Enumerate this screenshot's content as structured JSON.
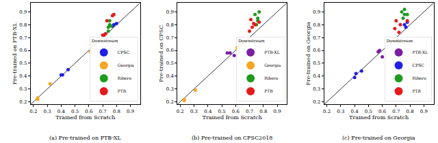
{
  "chart_data": [
    {
      "type": "scatter",
      "title": "(a) Pre-trained on PTB-XL",
      "x_label": "Trained from Scratch",
      "y_label": "Pre-trained on PTB-XL",
      "xlim": [
        0.18,
        0.97
      ],
      "ylim": [
        0.18,
        0.97
      ],
      "xticks": [
        0.2,
        0.3,
        0.4,
        0.5,
        0.6,
        0.7,
        0.8,
        0.9
      ],
      "yticks": [
        0.2,
        0.3,
        0.4,
        0.5,
        0.6,
        0.7,
        0.8,
        0.9
      ],
      "grid": false,
      "legend": "lower right",
      "legend_title": "Downstream",
      "series": [
        {
          "name": "CPSC",
          "color": "#1f1fe6",
          "marker": "circle",
          "x": [
            0.41,
            0.4,
            0.45,
            0.78,
            0.8,
            0.77
          ],
          "values": [
            0.41,
            0.41,
            0.45,
            0.8,
            0.81,
            0.79
          ]
        },
        {
          "name": "Georgia",
          "color": "#f5a623",
          "marker": "circle",
          "x": [
            0.23,
            0.32,
            0.23,
            0.62,
            0.61,
            0.62
          ],
          "values": [
            0.22,
            0.34,
            0.23,
            0.63,
            0.59,
            0.64
          ]
        },
        {
          "name": "Ribero",
          "color": "#1e9a1e",
          "marker": "circle",
          "x": [
            0.74,
            0.75,
            0.74,
            0.76,
            0.75
          ],
          "values": [
            0.78,
            0.83,
            0.75,
            0.79,
            0.8
          ]
        },
        {
          "name": "PTB",
          "color": "#e8191b",
          "marker": "circle",
          "x": [
            0.7,
            0.73,
            0.77,
            0.78,
            0.72,
            0.71
          ],
          "values": [
            0.72,
            0.83,
            0.87,
            0.88,
            0.73,
            0.72
          ]
        }
      ]
    },
    {
      "type": "scatter",
      "title": "(b) Pre-trained on CPSC2018",
      "x_label": "Trained from Scratch",
      "y_label": "Pre-trained on CPSC",
      "xlim": [
        0.18,
        0.97
      ],
      "ylim": [
        0.18,
        0.97
      ],
      "xticks": [
        0.2,
        0.3,
        0.4,
        0.5,
        0.6,
        0.7,
        0.8,
        0.9
      ],
      "yticks": [
        0.2,
        0.3,
        0.4,
        0.5,
        0.6,
        0.7,
        0.8,
        0.9
      ],
      "grid": false,
      "legend": "lower right",
      "legend_title": "Downstream",
      "series": [
        {
          "name": "PTB-XL",
          "color": "#7b1fa2",
          "marker": "circle",
          "x": [
            0.54,
            0.56,
            0.59
          ],
          "values": [
            0.58,
            0.58,
            0.56
          ]
        },
        {
          "name": "Georgia",
          "color": "#f5a623",
          "marker": "circle",
          "x": [
            0.23,
            0.31,
            0.23,
            0.62,
            0.63,
            0.61
          ],
          "values": [
            0.22,
            0.29,
            0.21,
            0.64,
            0.64,
            0.62
          ]
        },
        {
          "name": "Ribero",
          "color": "#1e9a1e",
          "marker": "circle",
          "x": [
            0.74,
            0.77,
            0.76,
            0.76,
            0.75
          ],
          "values": [
            0.88,
            0.9,
            0.85,
            0.83,
            0.8
          ]
        },
        {
          "name": "PTB",
          "color": "#e8191b",
          "marker": "circle",
          "x": [
            0.71,
            0.74,
            0.77,
            0.7,
            0.72,
            0.73
          ],
          "values": [
            0.84,
            0.8,
            0.82,
            0.75,
            0.78,
            0.81
          ]
        }
      ]
    },
    {
      "type": "scatter",
      "title": "(c) Pre-trained on Georgia",
      "x_label": "Trained from Scratch",
      "y_label": "Pre-trained on Georgia",
      "xlim": [
        0.18,
        0.97
      ],
      "ylim": [
        0.18,
        0.97
      ],
      "xticks": [
        0.2,
        0.3,
        0.4,
        0.5,
        0.6,
        0.7,
        0.8,
        0.9
      ],
      "yticks": [
        0.2,
        0.3,
        0.4,
        0.5,
        0.6,
        0.7,
        0.8,
        0.9
      ],
      "grid": false,
      "legend": "lower right",
      "legend_title": "Downstream",
      "series": [
        {
          "name": "PTB-XL",
          "color": "#7b1fa2",
          "marker": "circle",
          "x": [
            0.57,
            0.58,
            0.6
          ],
          "values": [
            0.59,
            0.6,
            0.55
          ]
        },
        {
          "name": "CPSC",
          "color": "#1f1fe6",
          "marker": "circle",
          "x": [
            0.41,
            0.4,
            0.45,
            0.76,
            0.78,
            0.77
          ],
          "values": [
            0.42,
            0.39,
            0.44,
            0.8,
            0.82,
            0.78
          ]
        },
        {
          "name": "Ribero",
          "color": "#1e9a1e",
          "marker": "circle",
          "x": [
            0.74,
            0.76,
            0.76,
            0.75,
            0.78
          ],
          "values": [
            0.9,
            0.92,
            0.88,
            0.85,
            0.88
          ]
        },
        {
          "name": "PTB",
          "color": "#e8191b",
          "marker": "circle",
          "x": [
            0.7,
            0.73,
            0.78,
            0.69,
            0.71,
            0.72
          ],
          "values": [
            0.83,
            0.8,
            0.83,
            0.77,
            0.68,
            0.74
          ]
        }
      ]
    }
  ]
}
